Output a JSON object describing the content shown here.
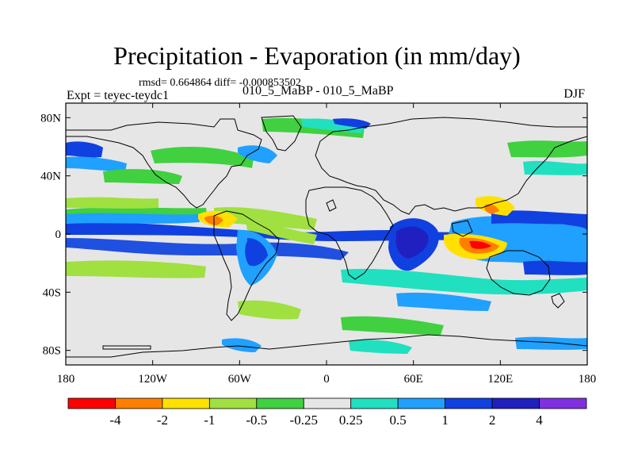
{
  "title": "Precipitation - Evaporation (in mm/day)",
  "stats": "rmsd= 0.664864  diff= -0.000853502",
  "left_label": "Expt = teyec-teydc1",
  "center_label": "010_5_MaBP - 010_5_MaBP",
  "right_label": "DJF",
  "axes": {
    "x_ticks": [
      {
        "value": -180,
        "label": "180"
      },
      {
        "value": -120,
        "label": "120W"
      },
      {
        "value": -60,
        "label": "60W"
      },
      {
        "value": 0,
        "label": "0"
      },
      {
        "value": 60,
        "label": "60E"
      },
      {
        "value": 120,
        "label": "120E"
      },
      {
        "value": 180,
        "label": "180"
      }
    ],
    "y_ticks": [
      {
        "value": 80,
        "label": "80N"
      },
      {
        "value": 40,
        "label": "40N"
      },
      {
        "value": 0,
        "label": "0"
      },
      {
        "value": -40,
        "label": "40S"
      },
      {
        "value": -80,
        "label": "80S"
      }
    ],
    "xlim": [
      -180,
      180
    ],
    "ylim": [
      -90,
      90
    ]
  },
  "colorbar": {
    "colors": [
      "#ff0000",
      "#ff8000",
      "#ffe000",
      "#a0e040",
      "#40d040",
      "#e6e6e6",
      "#20e0c0",
      "#20a0ff",
      "#1040e0",
      "#2020c0",
      "#8030e0"
    ],
    "labels": [
      "-4",
      "-2",
      "-1",
      "-0.5",
      "-0.25",
      "0.25",
      "0.5",
      "1",
      "2",
      "4"
    ]
  },
  "colors": {
    "land_outline": "#000000",
    "background": "#e6e6e6"
  }
}
